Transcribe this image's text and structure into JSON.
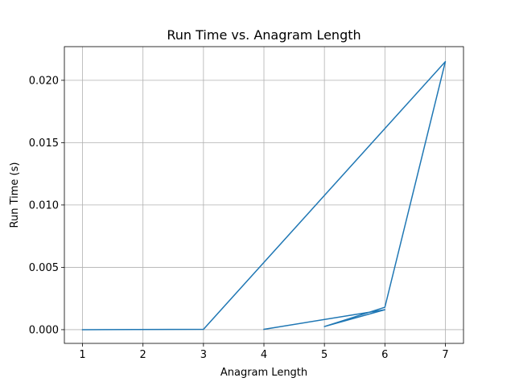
{
  "chart_data": {
    "type": "line",
    "title": "Run Time vs. Anagram Length",
    "xlabel": "Anagram Length",
    "ylabel": "Run Time (s)",
    "xlim": [
      0.7,
      7.3
    ],
    "ylim": [
      -0.0011,
      0.0227
    ],
    "xticks": [
      1,
      2,
      3,
      4,
      5,
      6,
      7
    ],
    "xtick_labels": [
      "1",
      "2",
      "3",
      "4",
      "5",
      "6",
      "7"
    ],
    "yticks": [
      0,
      0.005,
      0.01,
      0.015,
      0.02
    ],
    "ytick_labels": [
      "0.000",
      "0.005",
      "0.010",
      "0.015",
      "0.020"
    ],
    "grid": true,
    "series": [
      {
        "color": "#1f77b4",
        "points": [
          {
            "x": 1,
            "y": 0.0
          },
          {
            "x": 3,
            "y": 3e-05
          },
          {
            "x": 7,
            "y": 0.0215
          },
          {
            "x": 6,
            "y": 0.0018
          },
          {
            "x": 5,
            "y": 0.00025
          },
          {
            "x": 6,
            "y": 0.0016
          },
          {
            "x": 4,
            "y": 3e-05
          }
        ]
      }
    ]
  }
}
